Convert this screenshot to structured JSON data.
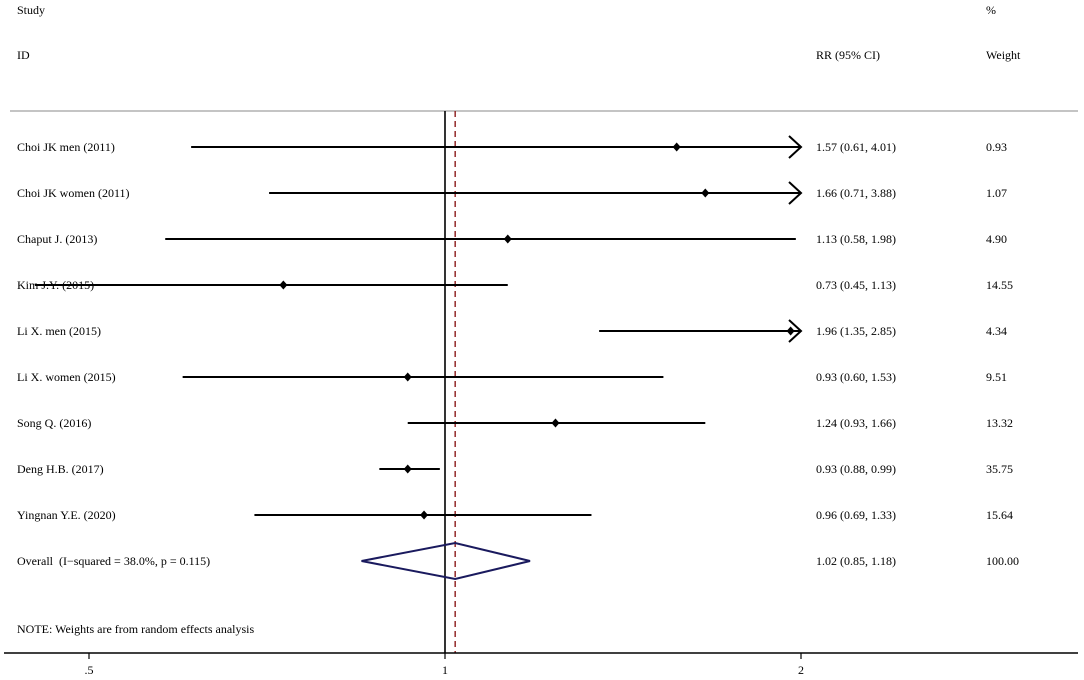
{
  "header": {
    "study": "Study",
    "id": "ID",
    "rr": "RR (95% CI)",
    "pct": "%",
    "weight": "Weight"
  },
  "note": "NOTE: Weights are from random effects analysis",
  "chart_data": {
    "type": "forest",
    "scale": "log",
    "x_ticks": [
      {
        "value": 0.5,
        "label": ".5"
      },
      {
        "value": 1,
        "label": "1"
      },
      {
        "value": 2,
        "label": "2"
      }
    ],
    "null_line": 1,
    "overall_line": 1.02,
    "display_range": [
      0.43,
      2.0
    ],
    "studies": [
      {
        "label": "Choi JK men (2011)",
        "rr": 1.57,
        "lo": 0.61,
        "hi": 4.01,
        "text": "1.57 (0.61, 4.01)",
        "weight": "0.93"
      },
      {
        "label": "Choi JK women (2011)",
        "rr": 1.66,
        "lo": 0.71,
        "hi": 3.88,
        "text": "1.66 (0.71, 3.88)",
        "weight": "1.07"
      },
      {
        "label": "Chaput J. (2013)",
        "rr": 1.13,
        "lo": 0.58,
        "hi": 1.98,
        "text": "1.13 (0.58, 1.98)",
        "weight": "4.90"
      },
      {
        "label": "Kim J.Y. (2015)",
        "rr": 0.73,
        "lo": 0.45,
        "hi": 1.13,
        "text": "0.73 (0.45, 1.13)",
        "weight": "14.55"
      },
      {
        "label": "Li X. men (2015)",
        "rr": 1.96,
        "lo": 1.35,
        "hi": 2.85,
        "text": "1.96 (1.35, 2.85)",
        "weight": "4.34"
      },
      {
        "label": "Li X. women (2015)",
        "rr": 0.93,
        "lo": 0.6,
        "hi": 1.53,
        "text": "0.93 (0.60, 1.53)",
        "weight": "9.51"
      },
      {
        "label": "Song Q. (2016)",
        "rr": 1.24,
        "lo": 0.93,
        "hi": 1.66,
        "text": "1.24 (0.93, 1.66)",
        "weight": "13.32"
      },
      {
        "label": "Deng H.B. (2017)",
        "rr": 0.93,
        "lo": 0.88,
        "hi": 0.99,
        "text": "0.93 (0.88, 0.99)",
        "weight": "35.75"
      },
      {
        "label": "Yingnan Y.E. (2020)",
        "rr": 0.96,
        "lo": 0.69,
        "hi": 1.33,
        "text": "0.96 (0.69, 1.33)",
        "weight": "15.64"
      }
    ],
    "overall": {
      "label": "Overall  (I−squared = 38.0%, p = 0.115)",
      "rr": 1.02,
      "lo": 0.85,
      "hi": 1.18,
      "text": "1.02 (0.85, 1.18)",
      "weight": "100.00"
    },
    "colors": {
      "axis": "#000000",
      "marker": "#000000",
      "diamond": "#1a1a5e",
      "overall_line": "#8b1a1a",
      "header_rule": "#b0b0b0"
    }
  }
}
